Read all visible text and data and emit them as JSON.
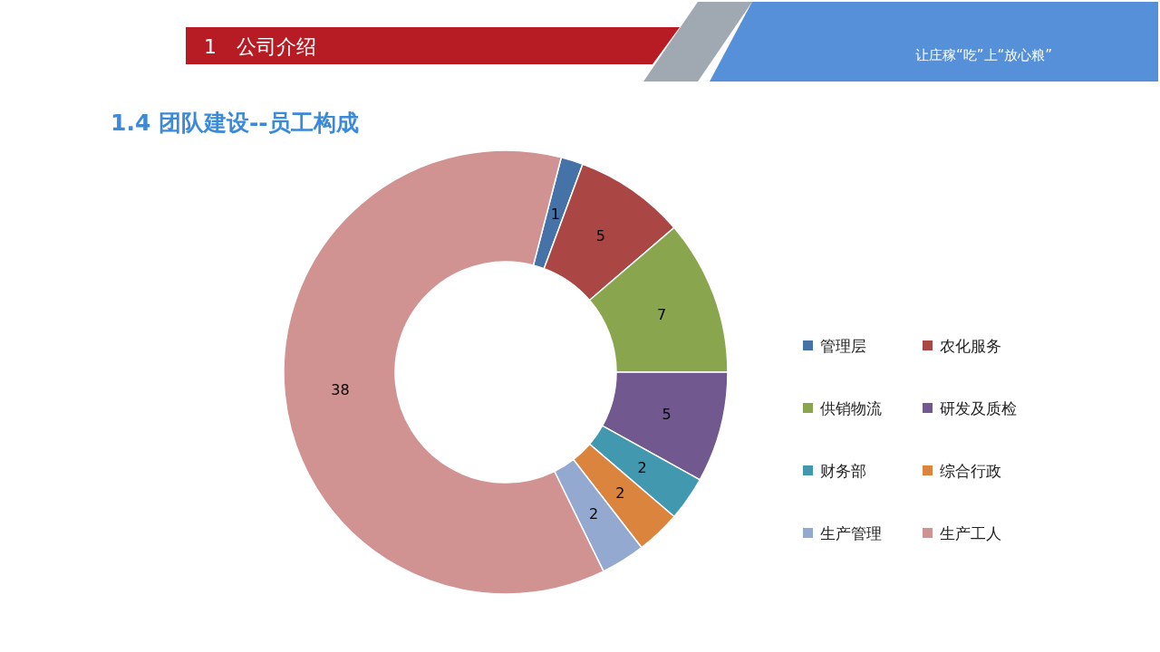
{
  "chart_data": {
    "type": "donut",
    "title": "1.4 团队建设--员工构成",
    "annotations": [
      "1　公司介绍",
      "让庄稼“吃”上“放心粮”"
    ],
    "categories": [
      "管理层",
      "农化服务",
      "供销物流",
      "研发及质检",
      "财务部",
      "综合行政",
      "生产管理",
      "生产工人"
    ],
    "values": [
      1,
      5,
      7,
      5,
      2,
      2,
      2,
      38
    ],
    "colors": [
      "#4572a7",
      "#aa4643",
      "#89a54e",
      "#71588f",
      "#4198af",
      "#db843d",
      "#93a9cf",
      "#d19392"
    ],
    "data_labels": true,
    "legend": "right"
  }
}
